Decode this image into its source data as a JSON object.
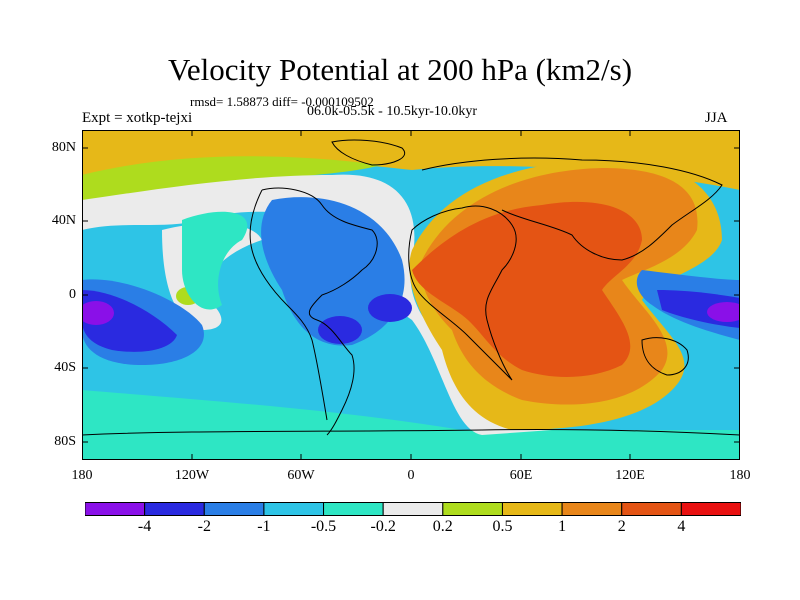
{
  "title": "Velocity Potential at 200 hPa (km2/s)",
  "stats": "rmsd= 1.58873 diff= -0.000109502",
  "experiment": "Expt = xotkp-tejxi",
  "period": "06.0k-05.5k - 10.5kyr-10.0kyr",
  "season": "JJA",
  "map": {
    "lat_labels": [
      "80N",
      "40N",
      "0",
      "40S",
      "80S"
    ],
    "lon_labels": [
      "180",
      "120W",
      "60W",
      "0",
      "60E",
      "120E",
      "180"
    ]
  },
  "colorbar": {
    "colors": [
      "#8a10e8",
      "#2a2ae0",
      "#2a7ee6",
      "#2ec4e6",
      "#2ee6c4",
      "#ebebeb",
      "#aedc1e",
      "#e6b818",
      "#e8861a",
      "#e45414",
      "#e81010"
    ],
    "labels": [
      "-4",
      "-2",
      "-1",
      "-0.5",
      "-0.2",
      "0.2",
      "0.5",
      "1",
      "2",
      "4"
    ]
  },
  "palette": {
    "land_outline": "#000000",
    "background": "#ffffff"
  }
}
